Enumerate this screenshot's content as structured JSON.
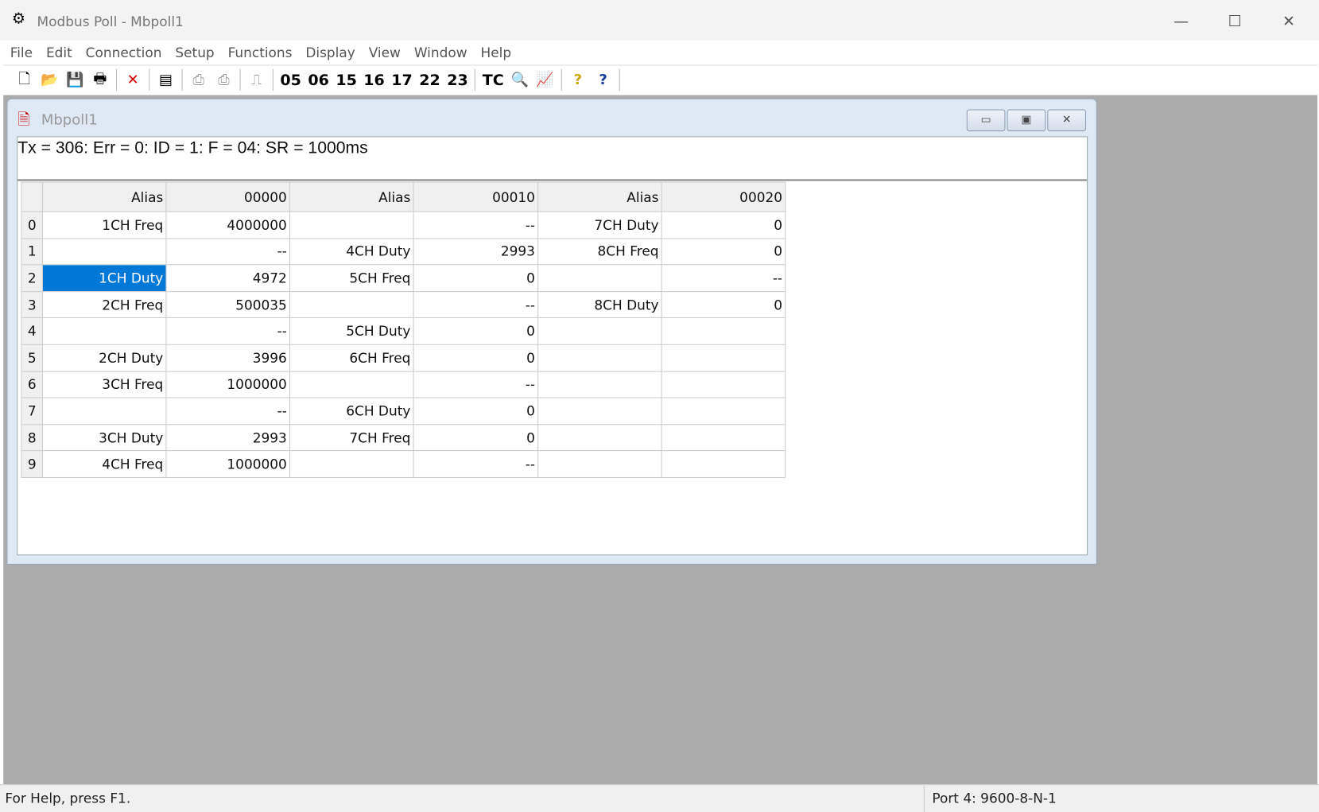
{
  "app": {
    "title": "Modbus Poll - Mbpoll1",
    "controls": {
      "minimize": "—",
      "maximize": "☐",
      "close": "✕"
    }
  },
  "menu": [
    "File",
    "Edit",
    "Connection",
    "Setup",
    "Functions",
    "Display",
    "View",
    "Window",
    "Help"
  ],
  "toolbar": {
    "icons": [
      {
        "name": "new-icon",
        "glyph": "🗋"
      },
      {
        "name": "open-icon",
        "glyph": "📂"
      },
      {
        "name": "save-icon",
        "glyph": "💾"
      },
      {
        "name": "print-icon",
        "glyph": "🖶"
      },
      {
        "name": "delete-icon",
        "glyph": "✕",
        "color": "#d00000"
      },
      {
        "name": "window-icon",
        "glyph": "▤"
      },
      {
        "name": "connect-icon",
        "glyph": "⎙"
      },
      {
        "name": "disconnect-icon",
        "glyph": "⎙"
      },
      {
        "name": "pulse-icon",
        "glyph": "⎍"
      }
    ],
    "functions": [
      "05",
      "06",
      "15",
      "16",
      "17",
      "22",
      "23"
    ],
    "tc": "TC",
    "extra": [
      {
        "name": "traffic-icon",
        "glyph": "🔍"
      },
      {
        "name": "chart-icon",
        "glyph": "📈"
      },
      {
        "name": "help-icon",
        "glyph": "?"
      },
      {
        "name": "context-help-icon",
        "glyph": "?"
      }
    ]
  },
  "child": {
    "title": "Mbpoll1",
    "status": "Tx = 306: Err = 0: ID = 1: F = 04: SR = 1000ms",
    "controls": {
      "minimize": "▭",
      "restore": "▣",
      "close": "✕"
    }
  },
  "grid": {
    "headers": [
      "Alias",
      "00000",
      "Alias",
      "00010",
      "Alias",
      "00020"
    ],
    "selected": {
      "row": 2,
      "col": 0
    },
    "rows": [
      [
        "0",
        "1CH Freq",
        "4000000",
        "",
        "--",
        "7CH Duty",
        "0"
      ],
      [
        "1",
        "",
        "--",
        "4CH Duty",
        "2993",
        "8CH Freq",
        "0"
      ],
      [
        "2",
        "1CH Duty",
        "4972",
        "5CH Freq",
        "0",
        "",
        "--"
      ],
      [
        "3",
        "2CH Freq",
        "500035",
        "",
        "--",
        "8CH Duty",
        "0"
      ],
      [
        "4",
        "",
        "--",
        "5CH Duty",
        "0",
        "",
        ""
      ],
      [
        "5",
        "2CH Duty",
        "3996",
        "6CH Freq",
        "0",
        "",
        ""
      ],
      [
        "6",
        "3CH Freq",
        "1000000",
        "",
        "--",
        "",
        ""
      ],
      [
        "7",
        "",
        "--",
        "6CH Duty",
        "0",
        "",
        ""
      ],
      [
        "8",
        "3CH Duty",
        "2993",
        "7CH Freq",
        "0",
        "",
        ""
      ],
      [
        "9",
        "4CH Freq",
        "1000000",
        "",
        "--",
        "",
        ""
      ]
    ]
  },
  "statusbar": {
    "help": "For Help, press F1.",
    "port": "Port 4: 9600-8-N-1"
  },
  "colors": {
    "selection": "#0078d7",
    "mdi_background": "#ababab"
  }
}
